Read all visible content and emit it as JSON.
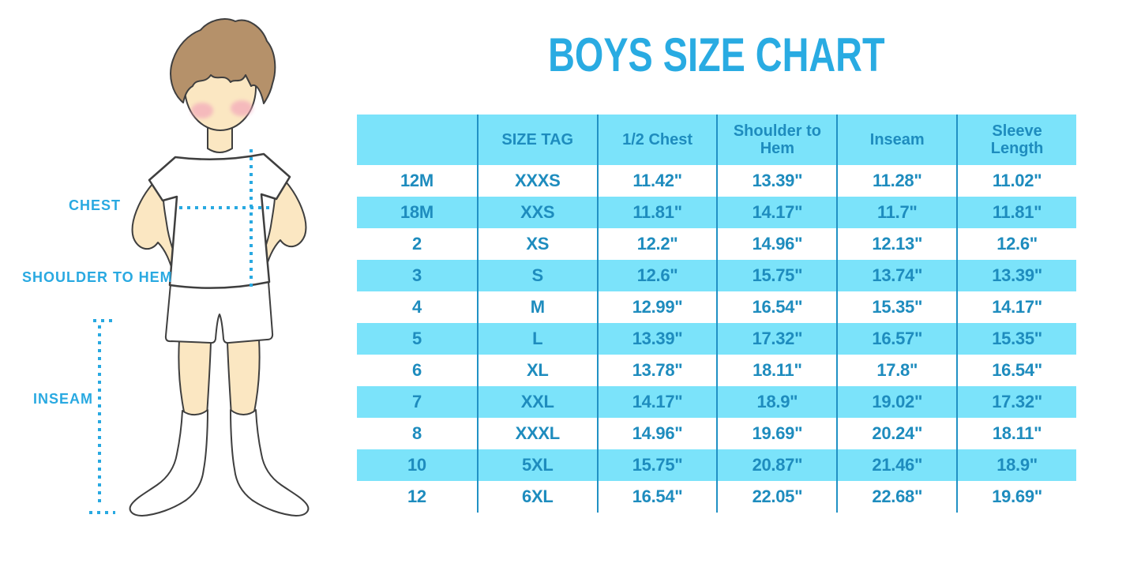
{
  "title": "BOYS SIZE CHART",
  "figure": {
    "labels": {
      "chest": "CHEST",
      "shoulder_to_hem": "SHOULDER TO HEM",
      "inseam": "INSEAM"
    }
  },
  "table": {
    "columns": [
      "",
      "SIZE TAG",
      "1/2 Chest",
      "Shoulder to Hem",
      "Inseam",
      "Sleeve Length"
    ],
    "rows": [
      [
        "12M",
        "XXXS",
        "11.42\"",
        "13.39\"",
        "11.28\"",
        "11.02\""
      ],
      [
        "18M",
        "XXS",
        "11.81\"",
        "14.17\"",
        "11.7\"",
        "11.81\""
      ],
      [
        "2",
        "XS",
        "12.2\"",
        "14.96\"",
        "12.13\"",
        "12.6\""
      ],
      [
        "3",
        "S",
        "12.6\"",
        "15.75\"",
        "13.74\"",
        "13.39\""
      ],
      [
        "4",
        "M",
        "12.99\"",
        "16.54\"",
        "15.35\"",
        "14.17\""
      ],
      [
        "5",
        "L",
        "13.39\"",
        "17.32\"",
        "16.57\"",
        "15.35\""
      ],
      [
        "6",
        "XL",
        "13.78\"",
        "18.11\"",
        "17.8\"",
        "16.54\""
      ],
      [
        "7",
        "XXL",
        "14.17\"",
        "18.9\"",
        "19.02\"",
        "17.32\""
      ],
      [
        "8",
        "XXXL",
        "14.96\"",
        "19.69\"",
        "20.24\"",
        "18.11\""
      ],
      [
        "10",
        "5XL",
        "15.75\"",
        "20.87\"",
        "21.46\"",
        "18.9\""
      ],
      [
        "12",
        "6XL",
        "16.54\"",
        "22.05\"",
        "22.68\"",
        "19.69\""
      ]
    ]
  },
  "colors": {
    "accent_blue": "#29A9E1",
    "title_blue": "#29ABE2",
    "table_text_blue": "#1E8CBE",
    "row_cyan": "#7BE3FA",
    "divider_blue": "#2191C4",
    "hair_brown": "#B5916A",
    "skin": "#FBE7C2"
  },
  "chart_data": {
    "type": "table",
    "title": "BOYS SIZE CHART",
    "columns": [
      "",
      "SIZE TAG",
      "1/2 Chest",
      "Shoulder to Hem",
      "Inseam",
      "Sleeve Length"
    ],
    "rows": [
      [
        "12M",
        "XXXS",
        "11.42\"",
        "13.39\"",
        "11.28\"",
        "11.02\""
      ],
      [
        "18M",
        "XXS",
        "11.81\"",
        "14.17\"",
        "11.7\"",
        "11.81\""
      ],
      [
        "2",
        "XS",
        "12.2\"",
        "14.96\"",
        "12.13\"",
        "12.6\""
      ],
      [
        "3",
        "S",
        "12.6\"",
        "15.75\"",
        "13.74\"",
        "13.39\""
      ],
      [
        "4",
        "M",
        "12.99\"",
        "16.54\"",
        "15.35\"",
        "14.17\""
      ],
      [
        "5",
        "L",
        "13.39\"",
        "17.32\"",
        "16.57\"",
        "15.35\""
      ],
      [
        "6",
        "XL",
        "13.78\"",
        "18.11\"",
        "17.8\"",
        "16.54\""
      ],
      [
        "7",
        "XXL",
        "14.17\"",
        "18.9\"",
        "19.02\"",
        "17.32\""
      ],
      [
        "8",
        "XXXL",
        "14.96\"",
        "19.69\"",
        "20.24\"",
        "18.11\""
      ],
      [
        "10",
        "5XL",
        "15.75\"",
        "20.87\"",
        "21.46\"",
        "18.9\""
      ],
      [
        "12",
        "6XL",
        "16.54\"",
        "22.05\"",
        "22.68\"",
        "19.69\""
      ]
    ],
    "units": "inches",
    "figure_labels": [
      "CHEST",
      "SHOULDER TO HEM",
      "INSEAM"
    ],
    "layout_hints": {
      "striped_rows": true,
      "stripe_start": "second_body_row",
      "vertical_dividers_only": true
    }
  }
}
